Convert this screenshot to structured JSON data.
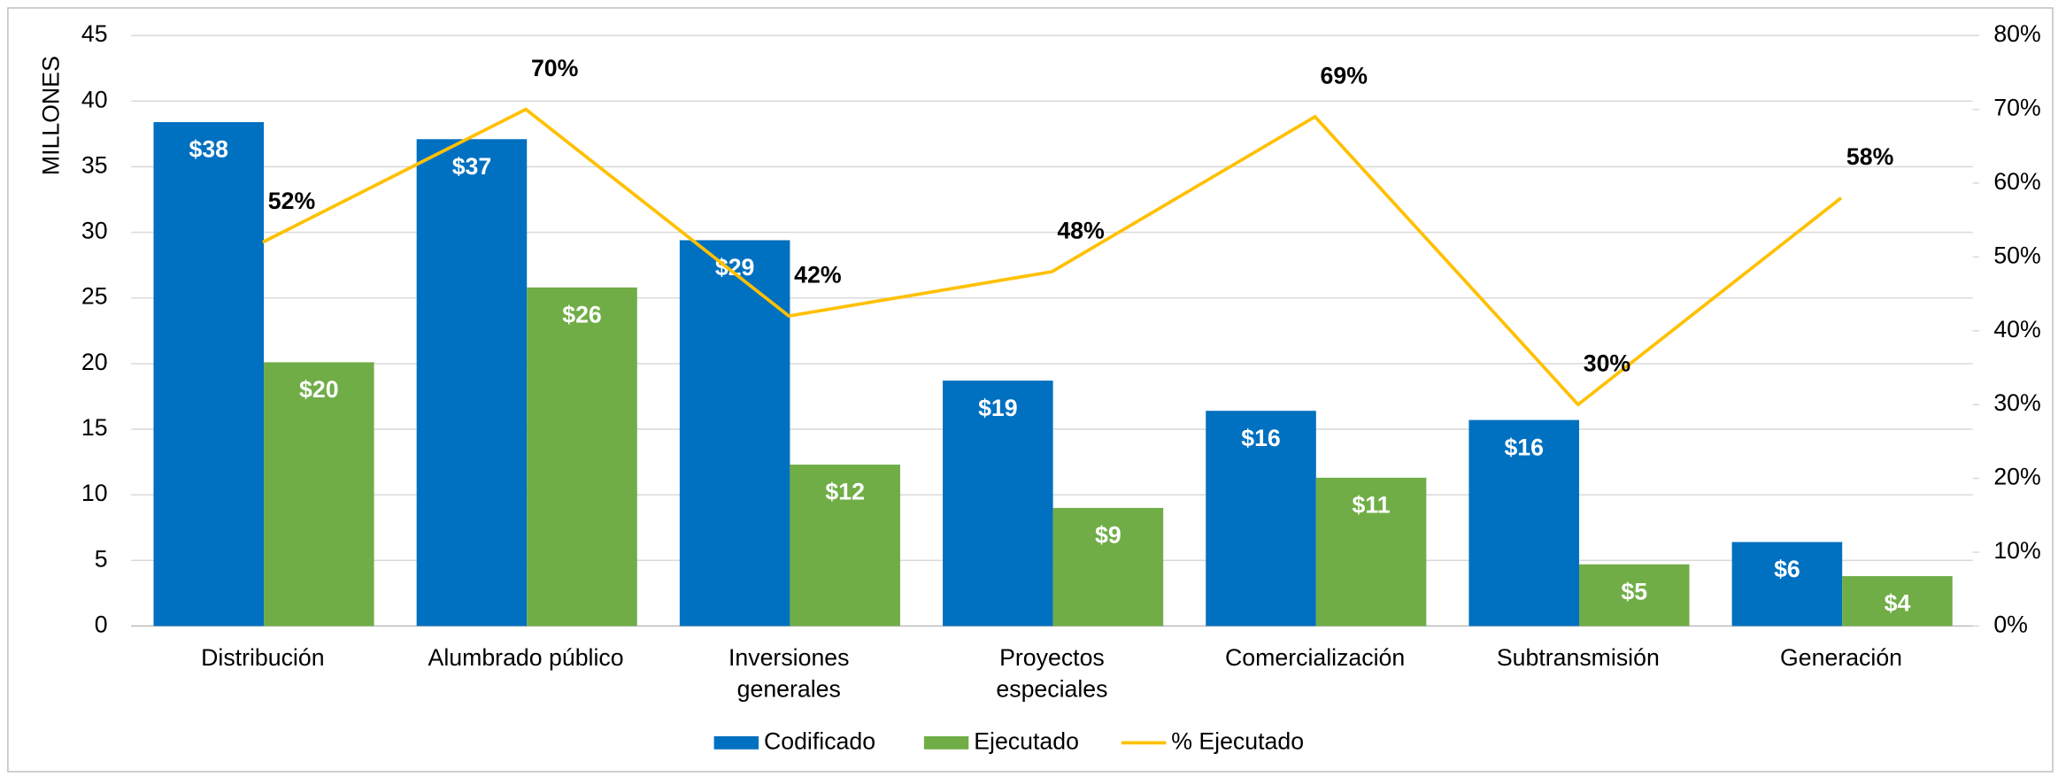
{
  "chart_data": {
    "type": "bar",
    "y_label": "MILLONES",
    "categories": [
      "Distribución",
      "Alumbrado público",
      "Inversiones generales",
      "Proyectos especiales",
      "Comercialización",
      "Subtransmisión",
      "Generación"
    ],
    "series": [
      {
        "name": "Codificado",
        "color": "#0070c0",
        "values": [
          38.4,
          37.1,
          29.4,
          18.7,
          16.4,
          15.7,
          6.4
        ],
        "value_labels": [
          "$38",
          "$37",
          "$29",
          "$19",
          "$16",
          "$16",
          "$6"
        ]
      },
      {
        "name": "Ejecutado",
        "color": "#70ad47",
        "values": [
          20.1,
          25.8,
          12.3,
          9.0,
          11.3,
          4.7,
          3.8
        ],
        "value_labels": [
          "$20",
          "$26",
          "$12",
          "$9",
          "$11",
          "$5",
          "$4"
        ]
      },
      {
        "name": "% Ejecutado",
        "type": "line",
        "axis": "y2",
        "color": "#ffc000",
        "values": [
          52,
          70,
          42,
          48,
          69,
          30,
          58
        ],
        "value_labels": [
          "52%",
          "70%",
          "42%",
          "48%",
          "69%",
          "30%",
          "58%"
        ]
      }
    ],
    "ylim": [
      0,
      45
    ],
    "yticks": [
      0,
      5,
      10,
      15,
      20,
      25,
      30,
      35,
      40,
      45
    ],
    "y2lim": [
      0,
      80
    ],
    "y2ticks": [
      {
        "value": 0,
        "label": "0%"
      },
      {
        "value": 10,
        "label": "10%"
      },
      {
        "value": 20,
        "label": "20%"
      },
      {
        "value": 30,
        "label": "30%"
      },
      {
        "value": 40,
        "label": "40%"
      },
      {
        "value": 50,
        "label": "50%"
      },
      {
        "value": 60,
        "label": "60%"
      },
      {
        "value": 70,
        "label": "70%"
      },
      {
        "value": 80,
        "label": "80%"
      }
    ],
    "grid": true,
    "legend": "bottom"
  }
}
